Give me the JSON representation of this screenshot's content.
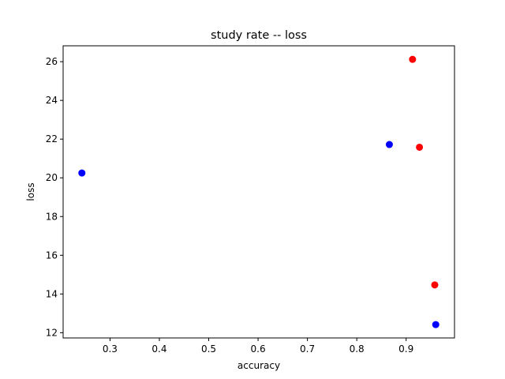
{
  "chart_data": {
    "type": "scatter",
    "title": "study rate -- loss",
    "xlabel": "accuracy",
    "ylabel": "loss",
    "xlim": [
      0.205,
      0.998
    ],
    "ylim": [
      11.73,
      26.82
    ],
    "xticks": [
      0.3,
      0.4,
      0.5,
      0.6,
      0.7,
      0.8,
      0.9
    ],
    "yticks": [
      12,
      14,
      16,
      18,
      20,
      22,
      24,
      26
    ],
    "grid": false,
    "legend": "none",
    "series": [
      {
        "color": "#0000ff",
        "points": [
          {
            "x": 0.243,
            "y": 20.25
          },
          {
            "x": 0.866,
            "y": 21.72
          },
          {
            "x": 0.96,
            "y": 12.42
          }
        ]
      },
      {
        "color": "#ff0000",
        "points": [
          {
            "x": 0.913,
            "y": 26.12
          },
          {
            "x": 0.927,
            "y": 21.58
          },
          {
            "x": 0.958,
            "y": 14.47
          }
        ]
      }
    ]
  }
}
